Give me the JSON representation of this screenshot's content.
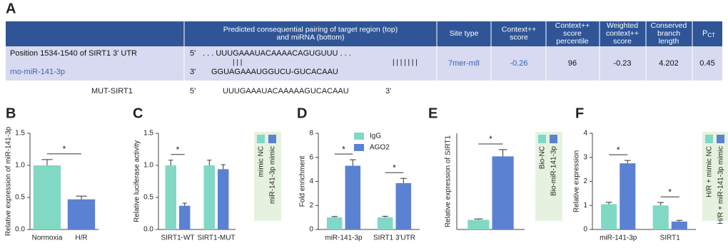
{
  "panel_a": {
    "label": "A",
    "headers": {
      "pairing": [
        "Predicted consequential pairing of target region (top)",
        "and miRNA (bottom)"
      ],
      "site_type": [
        "Site type"
      ],
      "context_score": [
        "Context++",
        "score"
      ],
      "percentile": [
        "Context++",
        "score",
        "percentile"
      ],
      "weighted": [
        "Weighted",
        "context++",
        "score"
      ],
      "branch_length": [
        "Conserved",
        "branch",
        "length"
      ],
      "pct": {
        "main": "P",
        "sub": "CT"
      }
    },
    "row": {
      "position": "Position 1534-1540 of SIRT1  3'  UTR",
      "mirna": "rno-miR-141-3p",
      "target_end5": "5'",
      "target_seq": ". . . UUUGAAAUACAAAACAGUGUUU . . .",
      "pair_marks_short": "| | |",
      "mirna_end3": "3'",
      "mirna_seq": "GGUAGAAAUGGUCU-GUCACAAU",
      "pair_marks_long": "| | | | | | |",
      "site_type": "7mer-m8",
      "context_score": "-0.26",
      "percentile": "96",
      "weighted": "-0.23",
      "branch_length": "4.202",
      "pct": "0.45"
    },
    "mut": {
      "name": "MUT-SIRT1",
      "end5": "5'",
      "seq": "UUUGAAAUACAAAAAGUCACAAU",
      "end3": "3'"
    }
  },
  "chart_data": [
    {
      "type": "bar",
      "panel": "B",
      "ylabel": "Relative expression of miR-141-3p",
      "categories": [
        "Normoxia",
        "H/R"
      ],
      "values": [
        1.0,
        0.47
      ],
      "errors": [
        0.09,
        0.05
      ],
      "colors": [
        "#80d8c5",
        "#5b81d3"
      ],
      "annotation": "*",
      "ylim": [
        0,
        1.5
      ],
      "yticks": [
        {
          "value": 0,
          "label": "0.0"
        },
        {
          "value": 0.5,
          "label": "0.5"
        },
        {
          "value": 1,
          "label": "1.0"
        },
        {
          "value": 1.5,
          "label": "1.5"
        }
      ]
    },
    {
      "type": "bar",
      "panel": "C",
      "ylabel": "Relative luciferase activity",
      "categories": [
        "SIRT1-WT",
        "SIRT1-MUT"
      ],
      "series": [
        {
          "name": "mimic NC",
          "color": "#80d8c5",
          "values": [
            1.0,
            1.0
          ],
          "errors": [
            0.08,
            0.08
          ]
        },
        {
          "name": "miR-141-3p mimic",
          "color": "#5b81d3",
          "values": [
            0.37,
            0.94
          ],
          "errors": [
            0.04,
            0.07
          ]
        }
      ],
      "annotations": [
        "*",
        null
      ],
      "legend": "right",
      "ylim": [
        0,
        1.5
      ],
      "yticks": [
        {
          "value": 0,
          "label": "0.0"
        },
        {
          "value": 0.5,
          "label": "0.5"
        },
        {
          "value": 1,
          "label": "1.0"
        },
        {
          "value": 1.5,
          "label": "1.5"
        }
      ]
    },
    {
      "type": "bar",
      "panel": "D",
      "ylabel": "Fold enrichment",
      "categories": [
        "miR-141-3p",
        "SIRT1 3'UTR"
      ],
      "series": [
        {
          "name": "IgG",
          "color": "#80d8c5",
          "values": [
            1.0,
            1.0
          ],
          "errors": [
            0.08,
            0.1
          ]
        },
        {
          "name": "AGO2",
          "color": "#5b81d3",
          "values": [
            5.3,
            3.85
          ],
          "errors": [
            0.5,
            0.4
          ]
        }
      ],
      "annotations": [
        "*",
        "*"
      ],
      "legend": "upper left",
      "ylim": [
        0,
        8
      ],
      "yticks": [
        0,
        2,
        4,
        6,
        8
      ]
    },
    {
      "type": "bar",
      "panel": "E",
      "ylabel": "Relative expression of SIRT1",
      "categories": [
        null
      ],
      "series": [
        {
          "name": "Bio-NC",
          "color": "#80d8c5",
          "values": [
            1.0
          ],
          "errors": [
            0.1
          ]
        },
        {
          "name": "Bio-miR-141-3p",
          "color": "#5b81d3",
          "values": [
            7.6
          ],
          "errors": [
            0.7
          ]
        }
      ],
      "annotations": [
        "*"
      ],
      "legend": "right",
      "ylim": [
        0,
        10
      ]
    },
    {
      "type": "bar",
      "panel": "F",
      "ylabel": "Relative expression",
      "categories": [
        "miR-141-3p",
        "SIRT1"
      ],
      "series": [
        {
          "name": "H/R + mimic NC",
          "color": "#80d8c5",
          "values": [
            1.05,
            1.0
          ],
          "errors": [
            0.08,
            0.12
          ]
        },
        {
          "name": "H/R + miR-141-3p mimic",
          "color": "#5b81d3",
          "values": [
            2.75,
            0.33
          ],
          "errors": [
            0.12,
            0.05
          ]
        }
      ],
      "annotations": [
        "*",
        "*"
      ],
      "legend": "right",
      "ylim": [
        0,
        4
      ],
      "yticks": [
        0,
        1,
        2,
        3,
        4
      ]
    }
  ]
}
